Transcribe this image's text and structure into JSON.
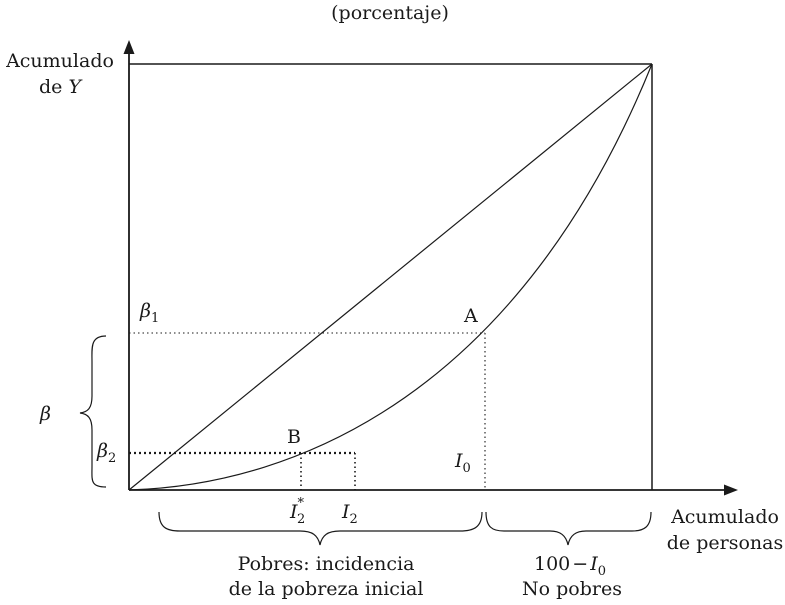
{
  "title": "(porcentaje)",
  "y_axis_label": {
    "line1": "Acumulado",
    "line2_prefix": "de",
    "line2_var": "Y"
  },
  "x_axis_label": {
    "line1": "Acumulado",
    "line2": "de personas"
  },
  "labels": {
    "beta1": {
      "main": "β",
      "sub": "1"
    },
    "beta2": {
      "main": "β",
      "sub": "2"
    },
    "beta": {
      "main": "β"
    },
    "point_a": "A",
    "point_b": "B",
    "i0": {
      "main": "I",
      "sub": "0"
    },
    "i2star": {
      "main": "I",
      "sub": "2",
      "sup": "*"
    },
    "i2": {
      "main": "I",
      "sub": "2"
    }
  },
  "brace_labels": {
    "poor": {
      "line1": "Pobres: incidencia",
      "line2": "de la pobreza inicial"
    },
    "nonpoor": {
      "expr_num": "100",
      "expr_minus": "−",
      "expr_var": "I",
      "expr_sub": "0",
      "line2": "No pobres"
    }
  },
  "colors": {
    "ink": "#1a1a1a",
    "background": "#ffffff"
  }
}
